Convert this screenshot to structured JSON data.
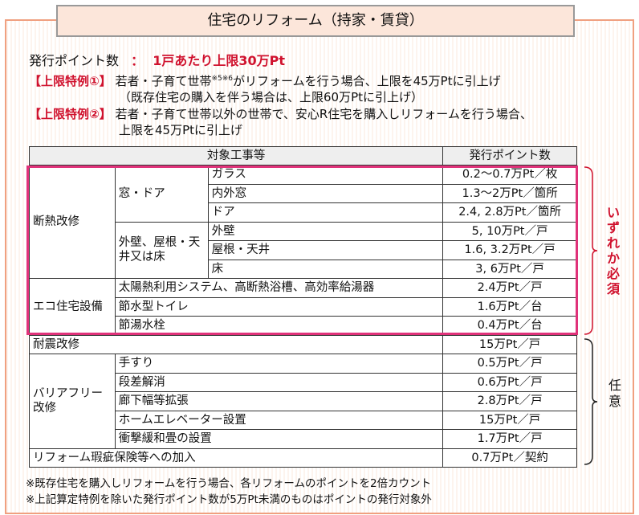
{
  "title": "住宅のリフォーム（持家・賃貸）",
  "issue": {
    "label": "発行ポイント数",
    "sep": "：",
    "value": "1戸あたり上限30万Pt"
  },
  "special1": {
    "label": "【上限特例①】",
    "text_a": "若者・子育て世帯",
    "sup": "※5※6",
    "text_b": "がリフォームを行う場合、上限を45万Ptに引上げ",
    "line2": "（既存住宅の購入を伴う場合は、上限60万Ptに引上げ）"
  },
  "special2": {
    "label": "【上限特例②】",
    "line1": "若者・子育て世帯以外の世帯で、安心R住宅を購入しリフォームを行う場合、",
    "line2": "上限を45万Ptに引上げ"
  },
  "table": {
    "header_work": "対象工事等",
    "header_points": "発行ポイント数",
    "insulation": "断熱改修",
    "window_door": "窓・ドア",
    "glass": "ガラス",
    "glass_pt": "0.2～0.7万Pt／枚",
    "inner_window": "内外窓",
    "inner_window_pt": "1.3～2万Pt／箇所",
    "door": "ドア",
    "door_pt": "2.4, 2.8万Pt／箇所",
    "wall_roof": "外壁、屋根・天井又は床",
    "wall": "外壁",
    "wall_pt": "5, 10万Pt／戸",
    "roof": "屋根・天井",
    "roof_pt": "1.6, 3.2万Pt／戸",
    "floor": "床",
    "floor_pt": "3, 6万Pt／戸",
    "eco": "エコ住宅設備",
    "solar": "太陽熱利用システム、高断熱浴槽、高効率給湯器",
    "solar_pt": "2.4万Pt／戸",
    "toilet": "節水型トイレ",
    "toilet_pt": "1.6万Pt／台",
    "faucet": "節湯水栓",
    "faucet_pt": "0.4万Pt／台",
    "quake": "耐震改修",
    "quake_pt": "15万Pt／戸",
    "barrier": "バリアフリー改修",
    "handrail": "手すり",
    "handrail_pt": "0.5万Pt／戸",
    "step": "段差解消",
    "step_pt": "0.6万Pt／戸",
    "corridor": "廊下幅等拡張",
    "corridor_pt": "2.8万Pt／戸",
    "elevator": "ホームエレベーター設置",
    "elevator_pt": "15万Pt／戸",
    "shock": "衝撃緩和畳の設置",
    "shock_pt": "1.7万Pt／戸",
    "insurance": "リフォーム瑕疵保険等への加入",
    "insurance_pt": "0.7万Pt／契約"
  },
  "side_required": "いずれか必須",
  "side_optional": "任意",
  "notes": [
    "※既存住宅を購入しリフォームを行う場合、各リフォームのポイントを2倍カウント",
    "※上記算定特例を除いた発行ポイント数が5万Pt未満のものはポイントの発行対象外"
  ]
}
